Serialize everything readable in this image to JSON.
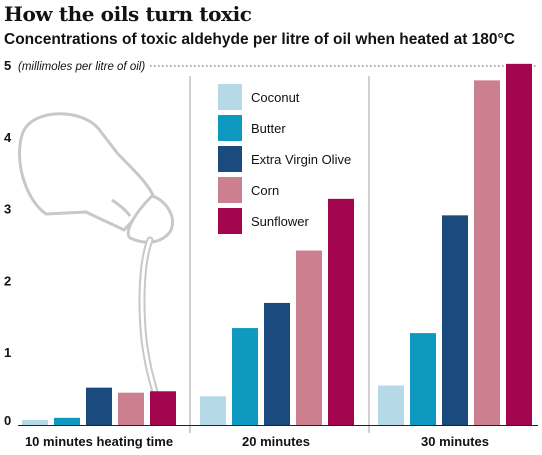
{
  "title": "How the oils turn toxic",
  "subtitle": "Concentrations of toxic aldehyde per litre of oil when heated at 180°C",
  "chart_data": {
    "type": "bar",
    "title": "How the oils turn toxic",
    "subtitle": "Concentrations of toxic aldehyde per litre of oil when heated at 180°C",
    "unit_label": "(millimoles per litre of oil)",
    "categories": [
      "10 minutes heating time",
      "20 minutes",
      "30 minutes"
    ],
    "ylim": [
      0,
      5
    ],
    "yticks": [
      0,
      1,
      2,
      3,
      4,
      5
    ],
    "grid": "dotted horizontal at top value; vertical separators between groups",
    "legend_position": "top-left of center",
    "series": [
      {
        "name": "Coconut",
        "color": "#b6d9e8",
        "values": [
          0.07,
          0.4,
          0.55
        ]
      },
      {
        "name": "Butter",
        "color": "#0e9ac0",
        "values": [
          0.1,
          1.35,
          1.28
        ]
      },
      {
        "name": "Extra Virgin Olive",
        "color": "#1b4a7e",
        "values": [
          0.52,
          1.7,
          2.92
        ]
      },
      {
        "name": "Corn",
        "color": "#cc7f8f",
        "values": [
          0.45,
          2.43,
          4.8
        ]
      },
      {
        "name": "Sunflower",
        "color": "#a3054f",
        "values": [
          0.47,
          3.15,
          5.03
        ]
      }
    ]
  },
  "illustration": {
    "icon": "oil-bottle-pouring-icon"
  }
}
